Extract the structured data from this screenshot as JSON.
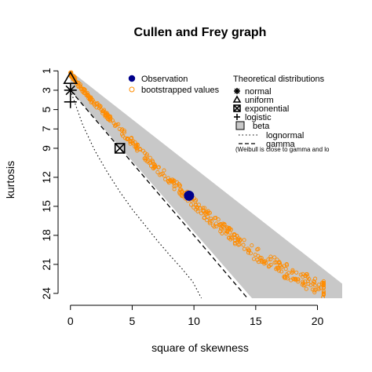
{
  "chart_data": {
    "type": "scatter",
    "title": "Cullen and Frey graph",
    "xlabel": "square of skewness",
    "ylabel": "kurtosis",
    "xlim": [
      -1,
      22
    ],
    "ylim": [
      24.5,
      0
    ],
    "y_axis_reversed": true,
    "grid": false,
    "x_ticks": [
      "0",
      "5",
      "10",
      "15",
      "20"
    ],
    "y_ticks": [
      "1",
      "3",
      "5",
      "7",
      "9",
      "12",
      "15",
      "18",
      "21",
      "24"
    ],
    "colors": {
      "observation": "#00008b",
      "bootstrapped": "#ff8c00",
      "beta_region": "#c8c8c8",
      "theoretical": "#000000"
    },
    "observation": {
      "x": 9.6,
      "y": 13.9
    },
    "bootstrap_samples": 430,
    "bootstrap_band": [
      {
        "x": 0.0,
        "y": 1.3
      },
      {
        "x": 1.0,
        "y": 3.0
      },
      {
        "x": 2.0,
        "y": 4.4
      },
      {
        "x": 3.0,
        "y": 5.6
      },
      {
        "x": 4.0,
        "y": 7.0
      },
      {
        "x": 5.0,
        "y": 8.4
      },
      {
        "x": 6.0,
        "y": 9.8
      },
      {
        "x": 7.0,
        "y": 11.0
      },
      {
        "x": 8.0,
        "y": 12.3
      },
      {
        "x": 9.0,
        "y": 13.4
      },
      {
        "x": 10.0,
        "y": 14.7
      },
      {
        "x": 11.0,
        "y": 15.9
      },
      {
        "x": 12.0,
        "y": 17.0
      },
      {
        "x": 13.0,
        "y": 18.0
      },
      {
        "x": 14.0,
        "y": 19.0
      },
      {
        "x": 15.0,
        "y": 19.9
      },
      {
        "x": 16.0,
        "y": 20.6
      },
      {
        "x": 17.0,
        "y": 21.4
      },
      {
        "x": 18.0,
        "y": 22.1
      },
      {
        "x": 19.0,
        "y": 22.7
      },
      {
        "x": 20.0,
        "y": 23.3
      },
      {
        "x": 20.5,
        "y": 23.6
      }
    ],
    "theoretical_points": [
      {
        "name": "normal",
        "x": 0,
        "y": 3
      },
      {
        "name": "uniform",
        "x": 0,
        "y": 1.8
      },
      {
        "name": "exponential",
        "x": 4,
        "y": 9
      },
      {
        "name": "logistic",
        "x": 0,
        "y": 4.2
      }
    ],
    "beta_region_polygon": [
      {
        "x": 0,
        "y": 1
      },
      {
        "x": 22,
        "y": 23
      },
      {
        "x": 22,
        "y": 24.5
      },
      {
        "x": 14.7,
        "y": 24.5
      },
      {
        "x": 0,
        "y": 3
      }
    ],
    "gamma_line": [
      {
        "x": 0,
        "y": 3
      },
      {
        "x": 14.7,
        "y": 25.05
      }
    ],
    "lognormal_line": [
      {
        "x": 0,
        "y": 3
      },
      {
        "x": 1.0,
        "y": 6.6
      },
      {
        "x": 2.0,
        "y": 9.3
      },
      {
        "x": 3.0,
        "y": 11.5
      },
      {
        "x": 4.0,
        "y": 13.5
      },
      {
        "x": 5.0,
        "y": 15.3
      },
      {
        "x": 6.0,
        "y": 16.9
      },
      {
        "x": 7.0,
        "y": 18.5
      },
      {
        "x": 8.0,
        "y": 20.0
      },
      {
        "x": 9.0,
        "y": 21.4
      },
      {
        "x": 9.9,
        "y": 22.8
      },
      {
        "x": 10.6,
        "y": 24.5
      }
    ],
    "legend_left": {
      "position": "top-center",
      "items": [
        {
          "label": "Observation",
          "marker": "filled-circle"
        },
        {
          "label": "bootstrapped values",
          "marker": "open-circle"
        }
      ]
    },
    "legend_right": {
      "position": "top-right",
      "title": "Theoretical distributions",
      "items": [
        {
          "label": "normal",
          "marker": "asterisk"
        },
        {
          "label": "uniform",
          "marker": "triangle"
        },
        {
          "label": "exponential",
          "marker": "boxed-x"
        },
        {
          "label": "logistic",
          "marker": "plus"
        },
        {
          "label": "beta",
          "marker": "grey-square"
        },
        {
          "label": "lognormal",
          "marker": "dotted-line"
        },
        {
          "label": "gamma",
          "marker": "dashed-line"
        }
      ],
      "note": "(Weibull is close to gamma and lo"
    }
  }
}
